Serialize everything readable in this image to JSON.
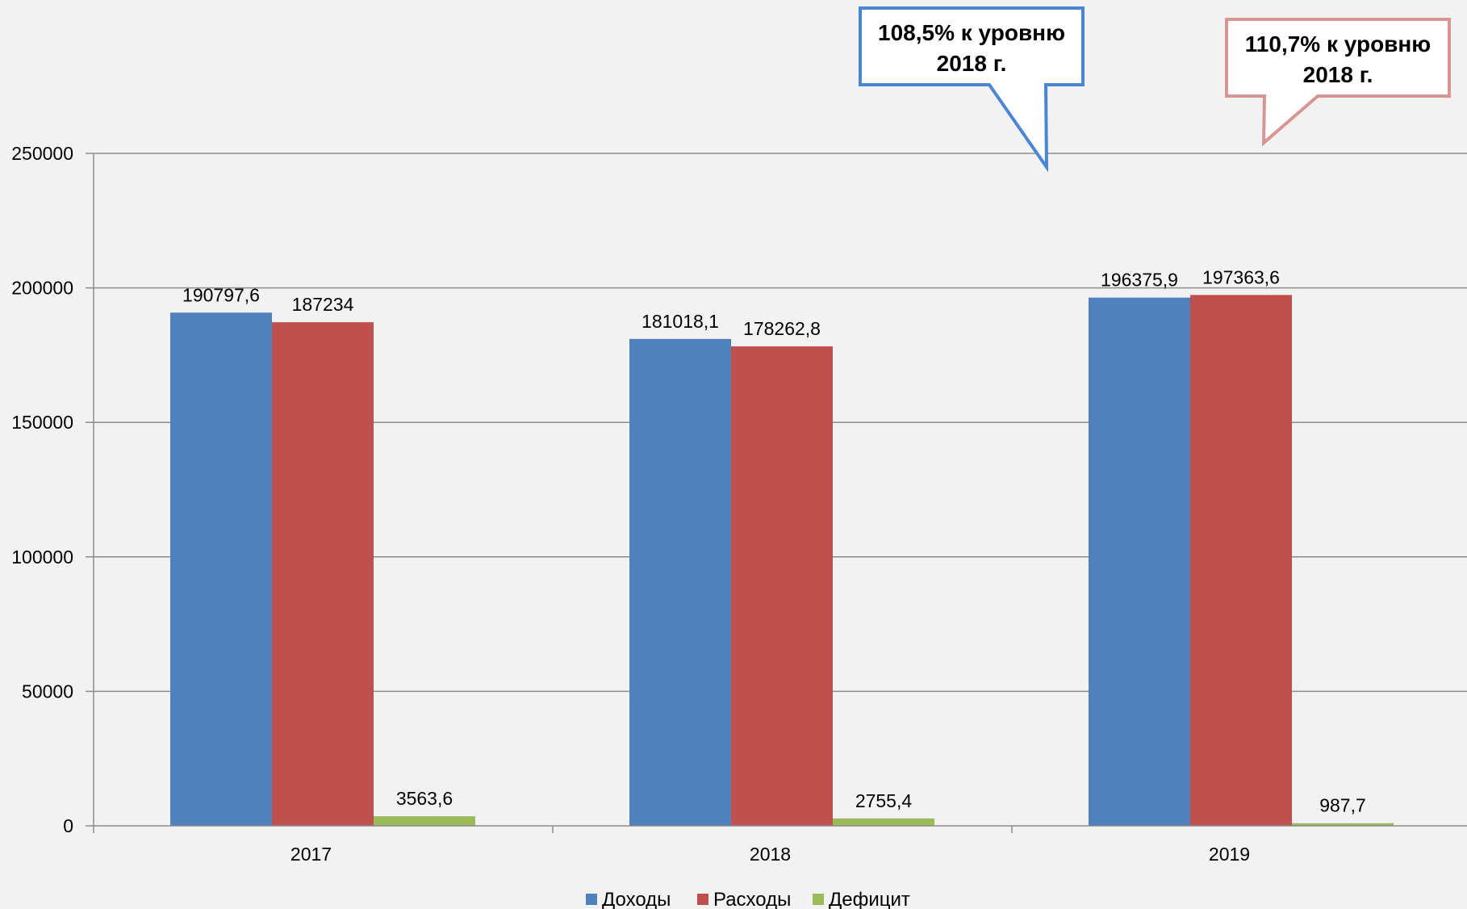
{
  "chart_data": {
    "type": "bar",
    "categories": [
      "2017",
      "2018",
      "2019"
    ],
    "series": [
      {
        "name": "Доходы",
        "color": "#4f81bd",
        "values": [
          190797.6,
          181018.1,
          196375.9
        ],
        "labels": [
          "190797,6",
          "181018,1",
          "196375,9"
        ]
      },
      {
        "name": "Расходы",
        "color": "#c0504d",
        "values": [
          187234,
          178262.8,
          197363.6
        ],
        "labels": [
          "187234",
          "178262,8",
          "197363,6"
        ]
      },
      {
        "name": "Дефицит",
        "color": "#9bbb59",
        "values": [
          3563.6,
          2755.4,
          987.7
        ],
        "labels": [
          "3563,6",
          "2755,4",
          "987,7"
        ]
      }
    ],
    "ylim": [
      0,
      250000
    ],
    "yticks": [
      0,
      50000,
      100000,
      150000,
      200000,
      250000
    ],
    "ytick_labels": [
      "0",
      "50000",
      "100000",
      "150000",
      "200000",
      "250000"
    ],
    "grid": true,
    "legend_position": "bottom",
    "annotations": [
      {
        "lines": [
          "108,5% к уровню",
          "2018 г."
        ],
        "border_color": "#4a86d4"
      },
      {
        "lines": [
          "110,7% к уровню",
          "2018 г."
        ],
        "border_color": "#d99594"
      }
    ]
  }
}
